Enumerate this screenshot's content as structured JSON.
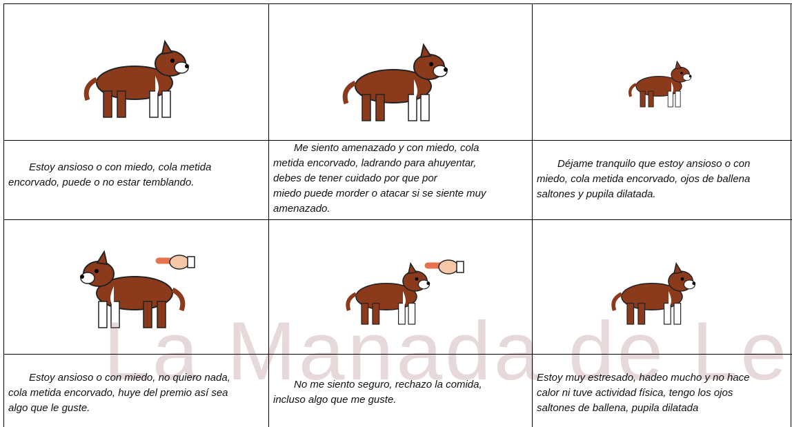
{
  "watermark": "La Manada de Leo",
  "captions": [
    {
      "lines": [
        "Estoy ansioso o con miedo, cola metida",
        "encorvado, puede o no estar temblando."
      ]
    },
    {
      "lines": [
        "Me siento amenazado y con miedo, cola",
        "metida encorvado, ladrando para ahuyentar,",
        "debes de tener cuidado por que por",
        "miedo  puede morder o atacar si se siente muy",
        "amenazado."
      ]
    },
    {
      "lines": [
        "Déjame tranquilo que estoy ansioso o con",
        "miedo, cola metida encorvado, ojos de ballena",
        "saltones y pupila dilatada."
      ]
    },
    {
      "lines": [
        "Estoy ansioso o con miedo, no quiero nada,",
        "cola metida encorvado, huye del premio así sea",
        "algo que le guste."
      ]
    },
    {
      "lines": [
        "No me siento seguro, rechazo la comida,",
        "incluso algo que me guste."
      ]
    },
    {
      "lines": [
        "Estoy muy estresado, hadeo mucho y no hace",
        "calor ni tuve actividad física, tengo los ojos",
        "saltones de ballena, pupila dilatada"
      ]
    }
  ]
}
